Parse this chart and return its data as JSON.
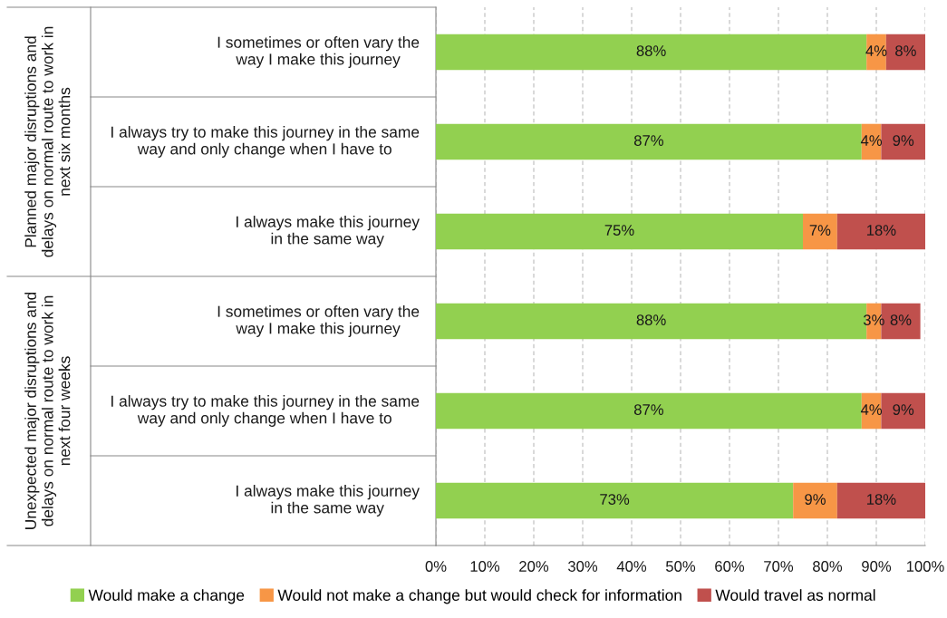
{
  "chart_data": {
    "type": "bar",
    "orientation": "horizontal",
    "stacked": true,
    "categories": [
      "I sometimes or often vary the\nway I make this journey",
      "I always try to make this journey in the same\nway and only change when I have to",
      "I always make this journey\nin the same way",
      "I sometimes or often vary the\nway I make this journey",
      "I always try to make this journey in the same\nway and only change when I have to",
      "I always make this journey\nin the same way"
    ],
    "series": [
      {
        "name": "Would make a change",
        "color": "#92d050",
        "values": [
          88,
          87,
          75,
          88,
          87,
          73
        ],
        "value_labels": [
          "88%",
          "87%",
          "75%",
          "88%",
          "87%",
          "73%"
        ]
      },
      {
        "name": "Would not make a change but would check for information",
        "color": "#f79646",
        "values": [
          4,
          4,
          7,
          3,
          4,
          9
        ],
        "value_labels": [
          "4%",
          "4%",
          "7%",
          "3%",
          "4%",
          "9%"
        ]
      },
      {
        "name": "Would travel as normal",
        "color": "#c0504d",
        "values": [
          8,
          9,
          18,
          8,
          9,
          18
        ],
        "value_labels": [
          "8%",
          "9%",
          "18%",
          "8%",
          "9%",
          "18%"
        ]
      }
    ],
    "annotations": [
      "Planned major disruptions and\ndelays on normal route to work in\nnext six months",
      "Unexpected major disruptions and\ndelays on normal route to work in\nnext four weeks"
    ],
    "xlim": [
      0,
      100
    ],
    "xticks": [
      {
        "value": 0,
        "label": "0%"
      },
      {
        "value": 10,
        "label": "10%"
      },
      {
        "value": 20,
        "label": "20%"
      },
      {
        "value": 30,
        "label": "30%"
      },
      {
        "value": 40,
        "label": "40%"
      },
      {
        "value": 50,
        "label": "50%"
      },
      {
        "value": 60,
        "label": "60%"
      },
      {
        "value": 70,
        "label": "70%"
      },
      {
        "value": 80,
        "label": "80%"
      },
      {
        "value": 90,
        "label": "90%"
      },
      {
        "value": 100,
        "label": "100%"
      }
    ],
    "grid": "x",
    "legend": "bottom"
  }
}
